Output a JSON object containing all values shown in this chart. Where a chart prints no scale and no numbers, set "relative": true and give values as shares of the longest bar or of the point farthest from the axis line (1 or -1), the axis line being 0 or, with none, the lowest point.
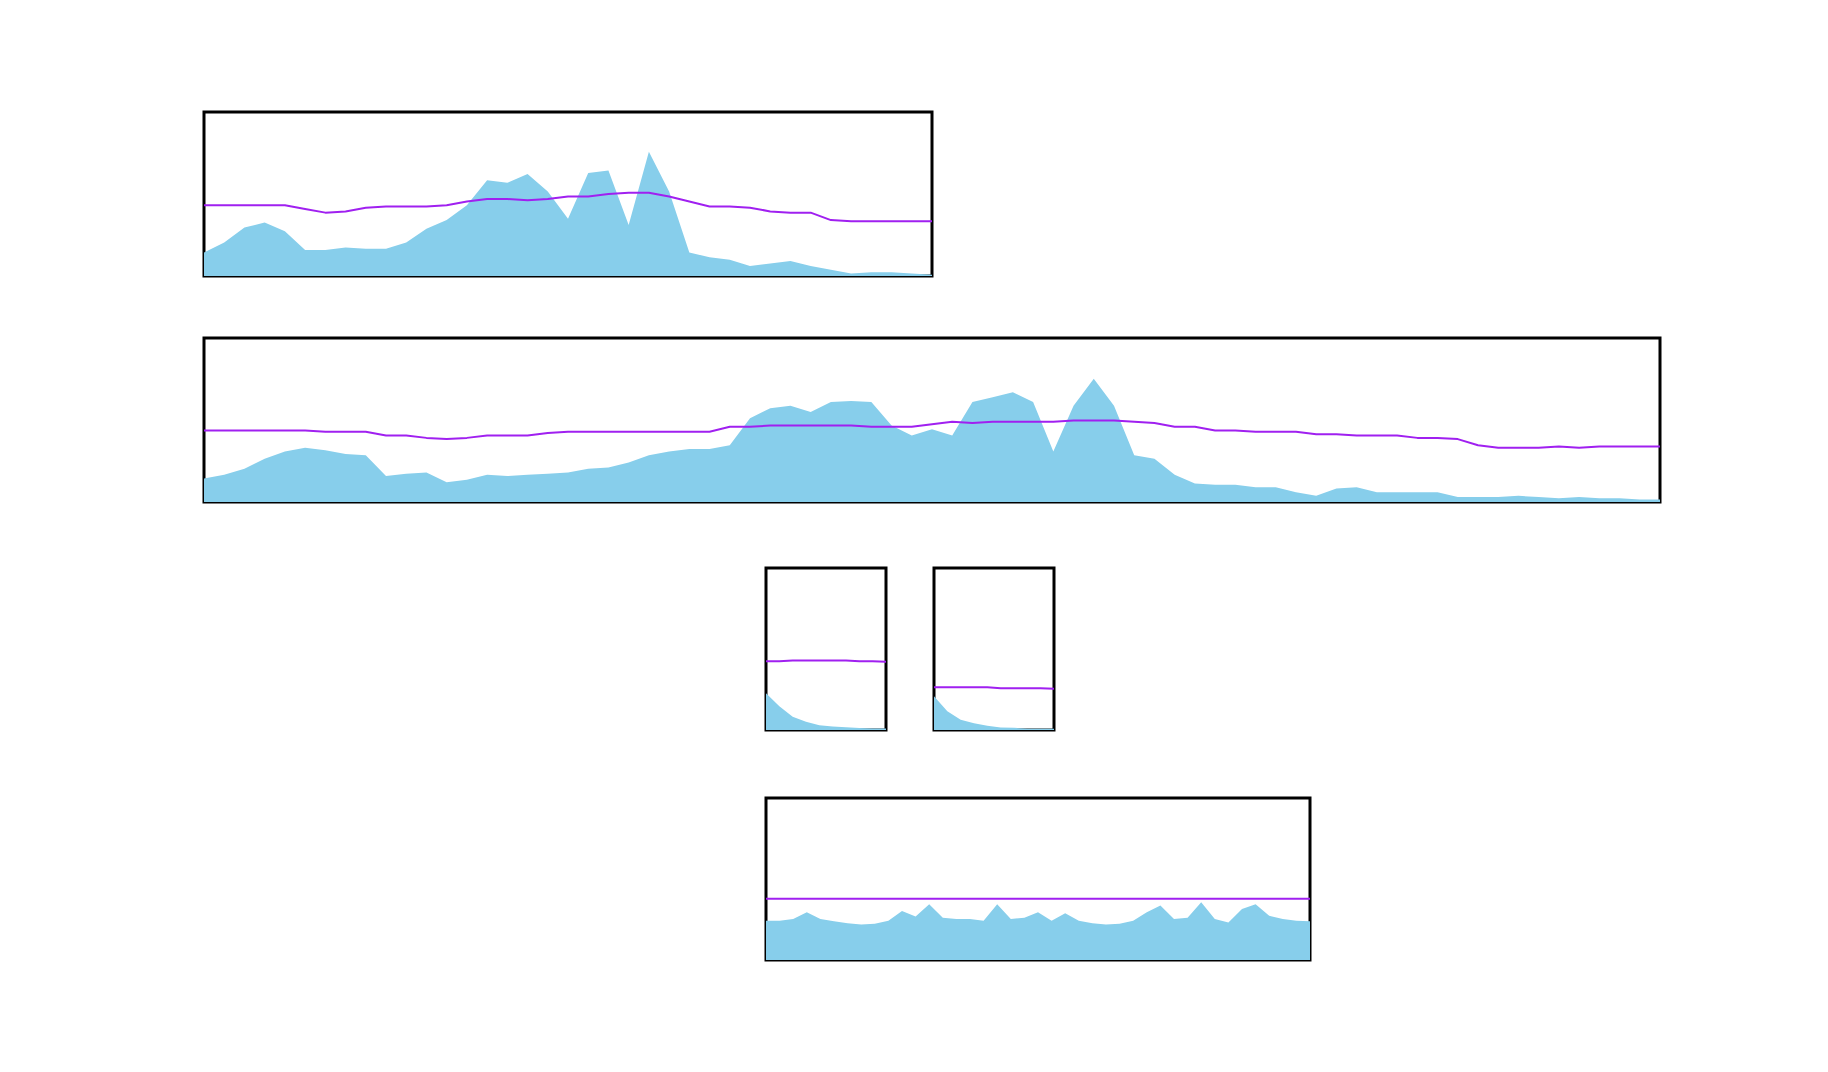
{
  "chart_data": [
    {
      "type": "area",
      "relative": true,
      "categories": [
        null,
        null,
        null,
        null,
        null,
        null,
        null,
        null,
        null,
        null,
        null,
        null,
        null,
        null,
        null,
        null,
        null,
        null,
        null,
        null,
        null,
        null,
        null,
        null,
        null,
        null,
        null,
        null,
        null,
        null,
        null,
        null,
        null,
        null,
        null,
        null,
        null
      ],
      "series": [
        {
          "color": "#87ceeb",
          "values": [
            0.19,
            0.27,
            0.39,
            0.43,
            0.36,
            0.21,
            0.21,
            0.23,
            0.22,
            0.22,
            0.27,
            0.38,
            0.45,
            0.57,
            0.77,
            0.75,
            0.82,
            0.68,
            0.46,
            0.83,
            0.85,
            0.41,
            1,
            0.68,
            0.19,
            0.15,
            0.13,
            0.08,
            0.1,
            0.12,
            0.08,
            0.05,
            0.02,
            0.03,
            0.03,
            0.02,
            0.01
          ]
        },
        {
          "type": "line",
          "color": "#a020f0",
          "values": [
            0.57,
            0.57,
            0.57,
            0.57,
            0.57,
            0.54,
            0.51,
            0.52,
            0.55,
            0.56,
            0.56,
            0.56,
            0.57,
            0.6,
            0.62,
            0.62,
            0.61,
            0.62,
            0.64,
            0.64,
            0.66,
            0.67,
            0.67,
            0.64,
            0.6,
            0.56,
            0.56,
            0.55,
            0.52,
            0.51,
            0.51,
            0.45,
            0.44,
            0.44,
            0.44,
            0.44,
            0.44
          ]
        }
      ]
    },
    {
      "type": "area",
      "relative": true,
      "categories": [
        null,
        null,
        null,
        null,
        null,
        null,
        null,
        null,
        null,
        null,
        null,
        null,
        null,
        null,
        null,
        null,
        null,
        null,
        null,
        null,
        null,
        null,
        null,
        null,
        null,
        null,
        null,
        null,
        null,
        null,
        null,
        null,
        null,
        null,
        null,
        null,
        null,
        null,
        null,
        null,
        null,
        null,
        null,
        null,
        null,
        null,
        null,
        null,
        null,
        null,
        null,
        null,
        null,
        null,
        null,
        null,
        null,
        null,
        null,
        null,
        null,
        null,
        null,
        null,
        null,
        null,
        null,
        null,
        null,
        null,
        null,
        null,
        null
      ],
      "series": [
        {
          "color": "#87ceeb",
          "values": [
            0.19,
            0.22,
            0.27,
            0.35,
            0.41,
            0.44,
            0.42,
            0.39,
            0.38,
            0.21,
            0.23,
            0.24,
            0.16,
            0.18,
            0.22,
            0.21,
            0.22,
            0.23,
            0.24,
            0.27,
            0.28,
            0.32,
            0.38,
            0.41,
            0.43,
            0.43,
            0.46,
            0.68,
            0.76,
            0.78,
            0.73,
            0.81,
            0.82,
            0.81,
            0.62,
            0.54,
            0.59,
            0.54,
            0.81,
            0.85,
            0.89,
            0.81,
            0.41,
            0.78,
            1,
            0.78,
            0.38,
            0.35,
            0.22,
            0.15,
            0.14,
            0.14,
            0.12,
            0.12,
            0.08,
            0.05,
            0.11,
            0.12,
            0.08,
            0.08,
            0.08,
            0.08,
            0.04,
            0.04,
            0.04,
            0.05,
            0.04,
            0.03,
            0.04,
            0.03,
            0.03,
            0.02,
            0.02
          ]
        },
        {
          "type": "line",
          "color": "#a020f0",
          "values": [
            0.58,
            0.58,
            0.58,
            0.58,
            0.58,
            0.58,
            0.57,
            0.57,
            0.57,
            0.54,
            0.54,
            0.52,
            0.51,
            0.52,
            0.54,
            0.54,
            0.54,
            0.56,
            0.57,
            0.57,
            0.57,
            0.57,
            0.57,
            0.57,
            0.57,
            0.57,
            0.61,
            0.61,
            0.62,
            0.62,
            0.62,
            0.62,
            0.62,
            0.61,
            0.61,
            0.61,
            0.63,
            0.65,
            0.64,
            0.65,
            0.65,
            0.65,
            0.65,
            0.66,
            0.66,
            0.66,
            0.65,
            0.64,
            0.61,
            0.61,
            0.58,
            0.58,
            0.57,
            0.57,
            0.57,
            0.55,
            0.55,
            0.54,
            0.54,
            0.54,
            0.52,
            0.52,
            0.51,
            0.46,
            0.44,
            0.44,
            0.44,
            0.45,
            0.44,
            0.45,
            0.45,
            0.45,
            0.45
          ]
        }
      ]
    },
    {
      "type": "area",
      "relative": true,
      "categories": [
        null,
        null,
        null,
        null,
        null,
        null,
        null,
        null,
        null,
        null
      ],
      "series": [
        {
          "color": "#87ceeb",
          "values": [
            0.53,
            0.34,
            0.19,
            0.12,
            0.07,
            0.05,
            0.04,
            0.03,
            0.02,
            0.02
          ]
        },
        {
          "type": "line",
          "color": "#a020f0",
          "values": [
            0.99,
            0.99,
            1,
            1,
            1,
            1,
            1,
            0.99,
            0.99,
            0.98
          ]
        }
      ]
    },
    {
      "type": "area",
      "relative": true,
      "categories": [
        null,
        null,
        null,
        null,
        null,
        null,
        null,
        null,
        null,
        null
      ],
      "series": [
        {
          "color": "#87ceeb",
          "values": [
            0.79,
            0.44,
            0.24,
            0.16,
            0.1,
            0.06,
            0.05,
            0.03,
            0.03,
            0.03
          ]
        },
        {
          "type": "line",
          "color": "#a020f0",
          "values": [
            1,
            1,
            1,
            1,
            1,
            0.98,
            0.98,
            0.98,
            0.98,
            0.97
          ]
        }
      ]
    },
    {
      "type": "area",
      "relative": true,
      "categories": [
        null,
        null,
        null,
        null,
        null,
        null,
        null,
        null,
        null,
        null,
        null,
        null,
        null,
        null,
        null,
        null,
        null,
        null,
        null,
        null,
        null,
        null,
        null,
        null,
        null,
        null,
        null,
        null,
        null,
        null,
        null,
        null,
        null,
        null,
        null,
        null,
        null,
        null,
        null,
        null,
        null
      ],
      "series": [
        {
          "color": "#87ceeb",
          "values": [
            0.64,
            0.64,
            0.67,
            0.78,
            0.67,
            0.63,
            0.6,
            0.58,
            0.59,
            0.64,
            0.8,
            0.71,
            0.91,
            0.69,
            0.67,
            0.67,
            0.64,
            0.91,
            0.67,
            0.69,
            0.78,
            0.64,
            0.76,
            0.64,
            0.6,
            0.58,
            0.59,
            0.64,
            0.78,
            0.89,
            0.67,
            0.69,
            0.94,
            0.67,
            0.61,
            0.83,
            0.91,
            0.72,
            0.67,
            0.64,
            0.63
          ]
        },
        {
          "type": "line",
          "color": "#a020f0",
          "values": [
            1,
            1,
            1,
            1,
            1,
            1,
            1,
            1,
            1,
            1,
            1,
            1,
            1,
            1,
            1,
            1,
            1,
            1,
            1,
            1,
            1,
            1,
            1,
            1,
            1,
            1,
            1,
            1,
            1,
            1,
            1,
            1,
            1,
            1,
            1,
            1,
            1,
            1,
            1,
            1,
            1
          ]
        }
      ]
    }
  ]
}
